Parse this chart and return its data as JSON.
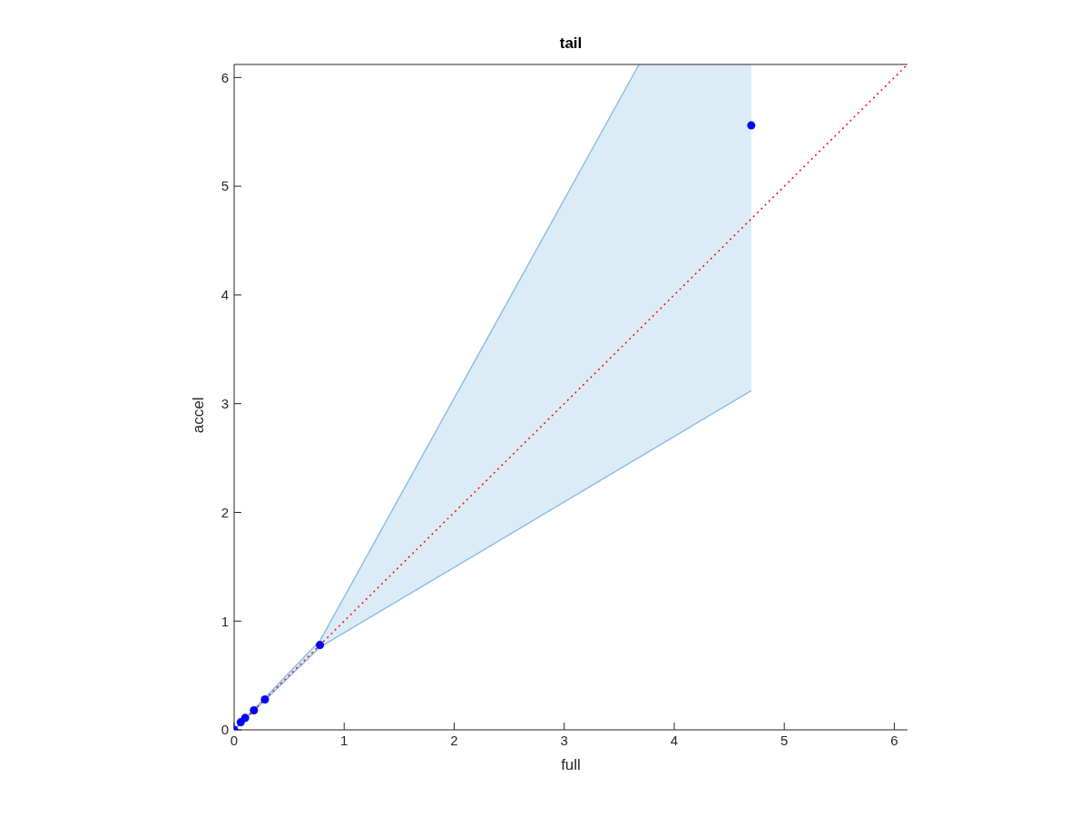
{
  "chart_data": {
    "type": "scatter",
    "title": "tail",
    "xlabel": "full",
    "ylabel": "accel",
    "xlim": [
      0,
      6.12
    ],
    "ylim": [
      0,
      6.12
    ],
    "xticks": [
      0,
      1,
      2,
      3,
      4,
      5,
      6
    ],
    "yticks": [
      0,
      1,
      2,
      3,
      4,
      5,
      6
    ],
    "grid": false,
    "marker": "circle",
    "series": [
      {
        "color": "#0000ff",
        "x": [
          0,
          0.06,
          0.1,
          0.18,
          0.28,
          0.78,
          3.68,
          4.7
        ],
        "values": [
          0,
          0.07,
          0.11,
          0.18,
          0.28,
          0.78,
          null,
          5.56
        ],
        "lower": [
          0,
          0.06,
          0.1,
          0.17,
          0.27,
          0.76,
          2.51,
          3.12
        ],
        "upper": [
          0,
          0.08,
          0.12,
          0.19,
          0.3,
          0.82,
          6.12,
          6.12
        ]
      },
      {
        "type": "line",
        "color": "#8bbfe6",
        "line_style": "solid",
        "marker": "none",
        "x": [
          0,
          0.78,
          4.7
        ],
        "values": [
          0,
          0.76,
          3.12
        ]
      },
      {
        "type": "line",
        "color": "#8bbfe6",
        "line_style": "solid",
        "marker": "none",
        "x": [
          0,
          0.78,
          3.68
        ],
        "values": [
          0,
          0.82,
          6.12
        ]
      },
      {
        "type": "line",
        "color": "#ff0000",
        "line_style": "dotted",
        "marker": "none",
        "x": [
          0,
          6.12
        ],
        "values": [
          0,
          6.12
        ]
      }
    ]
  }
}
